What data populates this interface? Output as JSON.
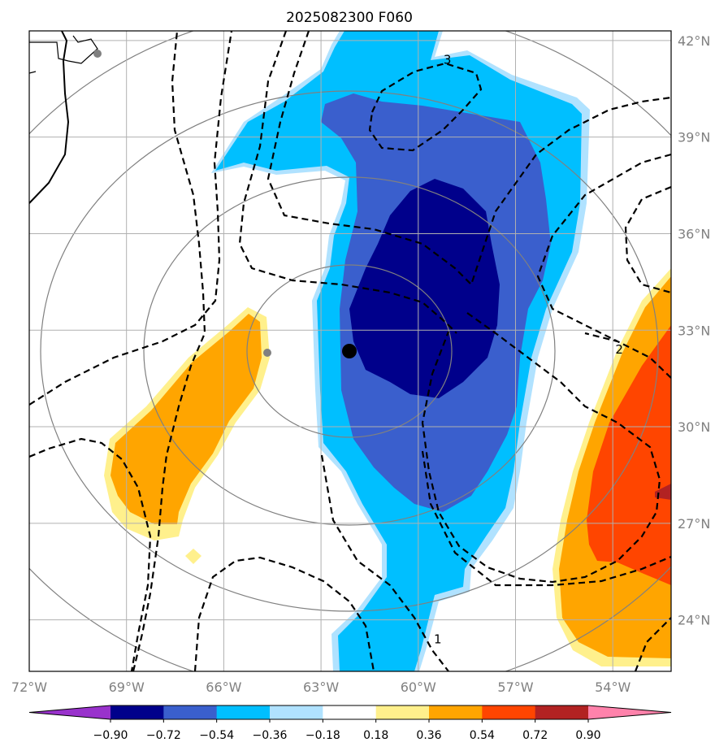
{
  "title": "2025082300 F060",
  "chart_data": {
    "type": "heatmap",
    "title": "2025082300 F060",
    "map": {
      "lon_range": [
        -72,
        -52.2
      ],
      "lat_range": [
        22.4,
        42.3
      ],
      "lon_ticks": [
        -72,
        -69,
        -66,
        -63,
        -60,
        -57,
        -54
      ],
      "lon_tick_labels": [
        "72°W",
        "69°W",
        "66°W",
        "63°W",
        "60°W",
        "57°W",
        "54°W"
      ],
      "lat_ticks": [
        42,
        39,
        36,
        33,
        30,
        27,
        24
      ],
      "lat_tick_labels": [
        "42°N",
        "39°N",
        "36°N",
        "33°N",
        "30°N",
        "27°N",
        "24°N"
      ],
      "gridlines": true
    },
    "colorbar": {
      "levels": [
        -0.9,
        -0.72,
        -0.54,
        -0.36,
        -0.18,
        0.18,
        0.36,
        0.54,
        0.72,
        0.9
      ],
      "tick_labels": [
        "−0.90",
        "−0.72",
        "−0.54",
        "−0.36",
        "−0.18",
        "0.18",
        "0.36",
        "0.54",
        "0.72",
        "0.90"
      ],
      "colors": [
        "#9932cc",
        "#00008b",
        "#3a5fcd",
        "#00bfff",
        "#b0e2ff",
        "#ffffff",
        "#fff08c",
        "#ffa500",
        "#ff4500",
        "#b22222",
        "#ff82ab"
      ],
      "extend": "both"
    },
    "contour_labels": [
      {
        "text": "3",
        "lon": -59.1,
        "lat": 41.4
      },
      {
        "text": "2",
        "lon": -53.8,
        "lat": 32.4
      },
      {
        "text": "1",
        "lon": -59.4,
        "lat": 23.4
      }
    ],
    "markers": [
      {
        "kind": "storm-center",
        "lon": -62.2,
        "lat": 32.4,
        "color": "#000000"
      },
      {
        "kind": "island",
        "lon": -64.7,
        "lat": 32.3,
        "color": "#808080"
      },
      {
        "kind": "station",
        "lon": -69.9,
        "lat": 41.7,
        "color": "#808080"
      }
    ],
    "range_rings_center": {
      "lon": -62.8,
      "lat": 32.4
    }
  }
}
